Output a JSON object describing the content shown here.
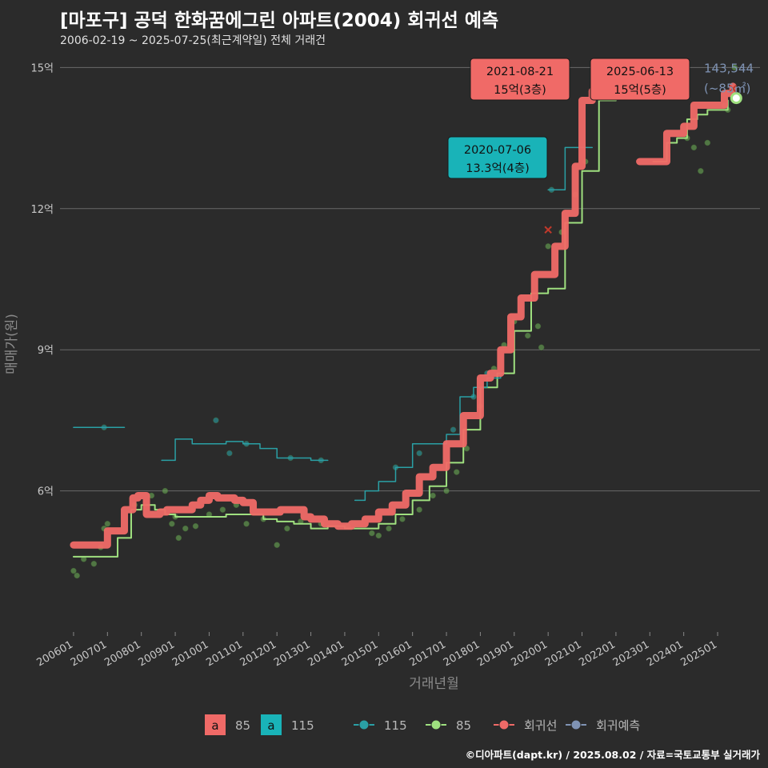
{
  "title": "[마포구] 공덕 한화꿈에그린 아파트(2004) 회귀선 예측",
  "subtitle": "2006-02-19 ~ 2025-07-25(최근계약일) 전체 거래건",
  "credit": "©디아파트(dapt.kr) / 2025.08.02 / 자료=국토교통부 실거래가",
  "colors": {
    "background": "#2b2b2b",
    "s85": "#f06a67",
    "s115": "#19b3b8",
    "line85": "#9fe07f",
    "line115": "#2aa0a5",
    "predict": "#7f93b4",
    "grid": "#6a6a6a"
  },
  "chart_data": {
    "type": "line",
    "xlabel": "거래년월",
    "ylabel": "매매가(원)",
    "x_ticks": [
      "200601",
      "200701",
      "200801",
      "200901",
      "201001",
      "201101",
      "201201",
      "201301",
      "201401",
      "201501",
      "201601",
      "201701",
      "201801",
      "201901",
      "202001",
      "202101",
      "202201",
      "202301",
      "202401",
      "202501"
    ],
    "y_ticks": [
      {
        "value": 6,
        "label": "6억"
      },
      {
        "value": 9,
        "label": "9억"
      },
      {
        "value": 12,
        "label": "12억"
      },
      {
        "value": 15,
        "label": "15억"
      }
    ],
    "ylim": [
      3,
      15.5
    ],
    "grid": true,
    "legend_position": "bottom",
    "legend": {
      "fill": [
        {
          "key": "a",
          "label": "85",
          "color": "#f06a67"
        },
        {
          "key": "a",
          "label": "115",
          "color": "#19b3b8"
        }
      ],
      "lines": [
        {
          "label": "115",
          "color": "#2aa0a5"
        },
        {
          "label": "85",
          "color": "#9fe07f"
        },
        {
          "label": "회귀선",
          "color": "#f06a67"
        },
        {
          "label": "회귀예측",
          "color": "#7f93b4"
        }
      ]
    },
    "series": [
      {
        "name": "회귀선",
        "color": "#f06a67",
        "x": [
          2006.0,
          2006.4,
          2006.8,
          2007.0,
          2007.3,
          2007.5,
          2007.75,
          2007.9,
          2008.15,
          2008.35,
          2008.55,
          2008.75,
          2009.0,
          2009.5,
          2009.75,
          2010.0,
          2010.25,
          2010.5,
          2010.75,
          2011.0,
          2011.3,
          2011.6,
          2011.85,
          2012.1,
          2012.4,
          2012.8,
          2013.0,
          2013.4,
          2013.8,
          2014.2,
          2014.6,
          2015.0,
          2015.4,
          2015.8,
          2016.2,
          2016.6,
          2017.0,
          2017.5,
          2018.0,
          2018.3,
          2018.6,
          2018.9,
          2019.2,
          2019.6,
          2019.9,
          2020.2,
          2020.5,
          2020.8,
          2021.0,
          2021.3,
          2021.6,
          2022.0,
          2022.4,
          2022.5
        ],
        "y": [
          4.85,
          4.85,
          4.85,
          5.15,
          5.15,
          5.6,
          5.85,
          5.9,
          5.5,
          5.5,
          5.55,
          5.6,
          5.6,
          5.7,
          5.8,
          5.9,
          5.85,
          5.85,
          5.8,
          5.75,
          5.55,
          5.55,
          5.55,
          5.6,
          5.6,
          5.45,
          5.4,
          5.3,
          5.25,
          5.3,
          5.4,
          5.55,
          5.7,
          5.95,
          6.3,
          6.5,
          7.0,
          7.6,
          8.4,
          8.5,
          9.0,
          9.7,
          10.1,
          10.6,
          10.6,
          11.2,
          11.9,
          12.9,
          14.3,
          14.5,
          14.95,
          14.95,
          14.95,
          14.95
        ]
      },
      {
        "name": "회귀선",
        "color": "#f06a67",
        "x": [
          2022.7,
          2023.2,
          2023.5,
          2023.75,
          2024.0,
          2024.3,
          2024.6,
          2024.9,
          2025.2,
          2025.45
        ],
        "y": [
          13.0,
          13.0,
          13.6,
          13.6,
          13.75,
          14.2,
          14.2,
          14.2,
          14.45,
          14.6
        ]
      },
      {
        "name": "85",
        "color": "#9fe07f",
        "x": [
          2006.0,
          2006.7,
          2007.3,
          2007.7,
          2008.0,
          2008.4,
          2008.7,
          2009.0,
          2009.5,
          2010.0,
          2010.5,
          2011.0,
          2011.6,
          2012.0,
          2012.5,
          2013.0,
          2013.5,
          2014.0,
          2014.5,
          2015.0,
          2015.5,
          2016.0,
          2016.5,
          2017.0,
          2017.5,
          2018.0,
          2018.5,
          2019.0,
          2019.5,
          2020.0,
          2020.5,
          2021.0,
          2021.5,
          2022.0,
          2022.4
        ],
        "y": [
          4.6,
          4.6,
          5.0,
          5.6,
          5.7,
          5.6,
          5.5,
          5.45,
          5.45,
          5.45,
          5.5,
          5.5,
          5.4,
          5.35,
          5.3,
          5.2,
          5.25,
          5.2,
          5.2,
          5.3,
          5.5,
          5.8,
          6.1,
          6.6,
          7.3,
          8.2,
          8.5,
          9.4,
          10.2,
          10.3,
          11.7,
          12.8,
          14.3,
          14.8,
          14.95
        ]
      },
      {
        "name": "85",
        "color": "#9fe07f",
        "x": [
          2023.1,
          2023.5,
          2023.8,
          2024.1,
          2024.4,
          2024.7,
          2025.0,
          2025.3
        ],
        "y": [
          13.0,
          13.4,
          13.5,
          13.9,
          14.0,
          14.1,
          14.1,
          14.3
        ]
      },
      {
        "name": "115",
        "color": "#2aa0a5",
        "x": [
          2006.0,
          2007.5
        ],
        "y": [
          7.35,
          7.35
        ]
      },
      {
        "name": "115",
        "color": "#2aa0a5",
        "x": [
          2008.6,
          2009.0,
          2009.5,
          2010.0,
          2010.5,
          2011.0,
          2011.5,
          2012.0,
          2012.5,
          2013.0,
          2013.5
        ],
        "y": [
          6.65,
          7.1,
          7.0,
          7.0,
          7.05,
          7.0,
          6.9,
          6.7,
          6.7,
          6.65,
          6.65
        ]
      },
      {
        "name": "115",
        "color": "#2aa0a5",
        "x": [
          2014.3,
          2014.6,
          2015.0,
          2015.5,
          2016.0,
          2016.5,
          2017.0,
          2017.4,
          2017.8,
          2018.2,
          2018.6
        ],
        "y": [
          5.8,
          6.0,
          6.2,
          6.5,
          7.0,
          7.0,
          7.2,
          8.0,
          8.2,
          8.4,
          8.5
        ]
      },
      {
        "name": "115",
        "color": "#2aa0a5",
        "x": [
          2020.0,
          2020.5,
          2020.9,
          2021.3
        ],
        "y": [
          12.4,
          13.3,
          13.3,
          13.3
        ]
      }
    ],
    "scatter": [
      {
        "name": "85",
        "color": "#6aaa55",
        "points": [
          [
            2006.0,
            4.3
          ],
          [
            2006.1,
            4.2
          ],
          [
            2006.3,
            4.55
          ],
          [
            2006.6,
            4.45
          ],
          [
            2006.8,
            4.8
          ],
          [
            2006.9,
            5.2
          ],
          [
            2007.0,
            5.3
          ],
          [
            2007.8,
            5.7
          ],
          [
            2008.3,
            5.9
          ],
          [
            2008.7,
            6.0
          ],
          [
            2008.9,
            5.3
          ],
          [
            2009.0,
            5.45
          ],
          [
            2009.1,
            5.0
          ],
          [
            2009.3,
            5.2
          ],
          [
            2009.6,
            5.25
          ],
          [
            2010.0,
            5.5
          ],
          [
            2010.4,
            5.6
          ],
          [
            2010.8,
            5.7
          ],
          [
            2011.1,
            5.3
          ],
          [
            2011.6,
            5.4
          ],
          [
            2012.0,
            4.85
          ],
          [
            2012.3,
            5.2
          ],
          [
            2012.7,
            5.35
          ],
          [
            2013.3,
            5.3
          ],
          [
            2014.1,
            5.25
          ],
          [
            2014.8,
            5.1
          ],
          [
            2015.0,
            5.05
          ],
          [
            2015.3,
            5.2
          ],
          [
            2015.7,
            5.4
          ],
          [
            2016.2,
            5.6
          ],
          [
            2016.6,
            5.9
          ],
          [
            2017.0,
            6.0
          ],
          [
            2017.3,
            6.4
          ],
          [
            2017.6,
            6.9
          ],
          [
            2018.0,
            7.8
          ],
          [
            2018.4,
            8.6
          ],
          [
            2018.7,
            9.1
          ],
          [
            2019.0,
            9.6
          ],
          [
            2019.4,
            9.3
          ],
          [
            2019.7,
            9.5
          ],
          [
            2019.8,
            9.05
          ],
          [
            2020.0,
            11.2
          ],
          [
            2020.4,
            11.5
          ],
          [
            2020.8,
            12.3
          ],
          [
            2021.1,
            13.0
          ],
          [
            2021.6,
            14.4
          ],
          [
            2021.9,
            14.9
          ],
          [
            2024.1,
            13.5
          ],
          [
            2024.3,
            13.3
          ],
          [
            2024.5,
            12.8
          ],
          [
            2024.7,
            13.4
          ],
          [
            2025.2,
            14.2
          ],
          [
            2025.3,
            14.1
          ],
          [
            2025.5,
            15.0
          ]
        ]
      },
      {
        "name": "115",
        "color": "#2aa0a5",
        "points": [
          [
            2006.9,
            7.35
          ],
          [
            2010.2,
            7.5
          ],
          [
            2010.6,
            6.8
          ],
          [
            2011.1,
            7.0
          ],
          [
            2012.4,
            6.7
          ],
          [
            2013.3,
            6.65
          ],
          [
            2015.5,
            6.5
          ],
          [
            2016.2,
            6.8
          ],
          [
            2017.2,
            7.3
          ],
          [
            2017.8,
            8.0
          ],
          [
            2018.2,
            8.5
          ],
          [
            2020.1,
            12.4
          ]
        ]
      }
    ],
    "highlight": [
      {
        "x": 2020.0,
        "y": 11.55
      },
      {
        "x": 2025.45,
        "y": 14.55
      }
    ],
    "prediction": {
      "x": 2025.55,
      "y": 14.35,
      "value_label": "143,544",
      "area_label": "(~85㎡)"
    },
    "annotations": [
      {
        "date": "2021-08-21",
        "price": "15억(3층)",
        "color": "#f06a67",
        "x": 2021.6,
        "y": 14.95
      },
      {
        "date": "2025-06-13",
        "price": "15억(5층)",
        "color": "#f06a67",
        "x": 2025.45,
        "y": 14.95
      },
      {
        "date": "2020-07-06",
        "price": "13.3억(4층)",
        "color": "#19b3b8",
        "x": 2020.5,
        "y": 13.3
      }
    ]
  }
}
